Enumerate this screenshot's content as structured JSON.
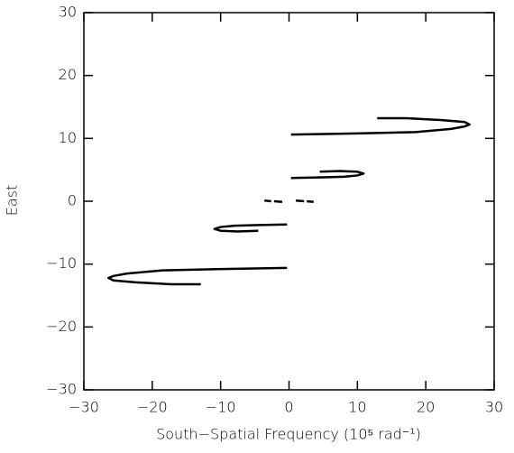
{
  "chart_data": {
    "type": "line",
    "xlabel": "South−Spatial Frequency (10⁵ rad⁻¹)",
    "ylabel": "East",
    "xlim": [
      -30,
      30
    ],
    "ylim": [
      -30,
      30
    ],
    "xticks": [
      {
        "value": -30,
        "label": "−30"
      },
      {
        "value": -20,
        "label": "−20"
      },
      {
        "value": -10,
        "label": "−10"
      },
      0,
      10,
      20,
      30
    ],
    "yticks": [
      {
        "value": -30,
        "label": "−30"
      },
      {
        "value": -20,
        "label": "−20"
      },
      {
        "value": -10,
        "label": "−10"
      },
      0,
      10,
      20,
      30
    ],
    "series": [
      {
        "color": "#000000",
        "x": [
          0.3,
          10.6,
          18.5,
          23.7,
          25.7,
          26.4,
          25.7,
          22.4,
          17.2,
          12.9
        ],
        "y": [
          10.6,
          10.8,
          11.0,
          11.5,
          11.9,
          12.2,
          12.6,
          12.9,
          13.2,
          13.2
        ]
      },
      {
        "color": "#000000",
        "x": [
          -0.3,
          -10.6,
          -18.5,
          -23.7,
          -25.7,
          -26.4,
          -25.7,
          -22.4,
          -17.2,
          -12.9
        ],
        "y": [
          -10.6,
          -10.8,
          -11.0,
          -11.5,
          -11.9,
          -12.2,
          -12.6,
          -12.9,
          -13.2,
          -13.2
        ]
      },
      {
        "color": "#000000",
        "x": [
          0.3,
          5.0,
          8.0,
          10.0,
          10.9,
          10.0,
          7.5,
          4.5
        ],
        "y": [
          3.7,
          3.8,
          3.9,
          4.1,
          4.4,
          4.7,
          4.8,
          4.7
        ]
      },
      {
        "color": "#000000",
        "x": [
          -0.3,
          -5.0,
          -8.0,
          -10.0,
          -10.9,
          -10.0,
          -7.5,
          -4.5
        ],
        "y": [
          -3.7,
          -3.8,
          -3.9,
          -4.1,
          -4.4,
          -4.7,
          -4.8,
          -4.7
        ]
      },
      {
        "color": "#000000",
        "x": [
          -3.6,
          -2.6,
          null,
          -2.2,
          -1.0,
          null,
          1.0,
          2.2,
          null,
          2.6,
          3.6
        ],
        "y": [
          0.1,
          0.0,
          null,
          0.0,
          -0.1,
          null,
          0.1,
          0.0,
          null,
          0.0,
          -0.1
        ]
      }
    ]
  }
}
